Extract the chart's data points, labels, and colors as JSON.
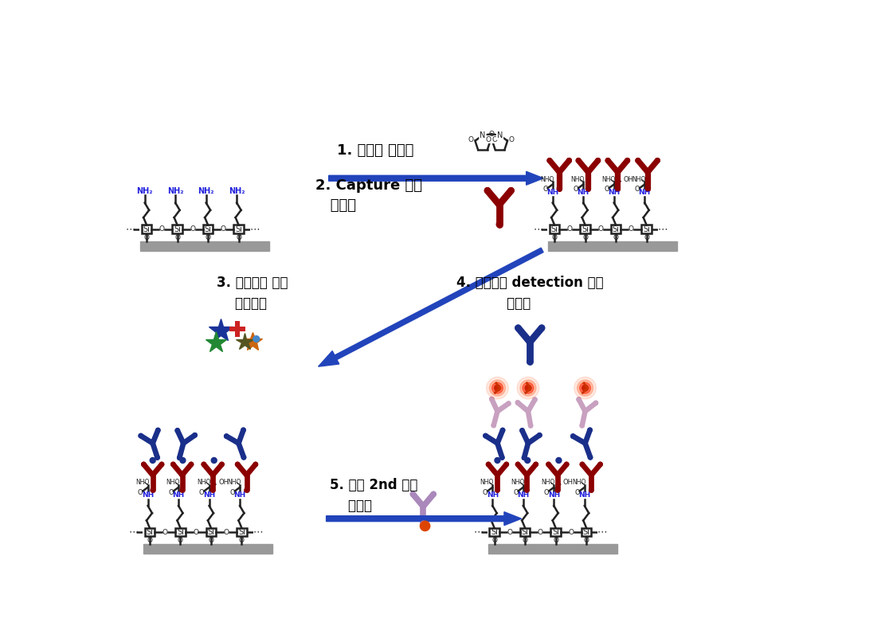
{
  "background_color": "#ffffff",
  "step1_label": "1. 아민칩 활성화",
  "step2_label": "2. Capture 항체\n   고정화",
  "step3_label": "3. 위암예후 항원\n    스크리닝",
  "step4_label": "4. 위암예후 detection 항체\n           고정화",
  "step5_label": "5. 형광 2nd 항체\n    고정화",
  "dark_red": "#8B0000",
  "blue_ab": "#1a2f8a",
  "light_purple": "#b89ab0",
  "arrow_blue": "#2244bb",
  "si_color": "#222222",
  "nh2_color": "#2222dd",
  "nh_color": "#2222dd",
  "gray_plate": "#999999",
  "orange_red": "#cc3300"
}
